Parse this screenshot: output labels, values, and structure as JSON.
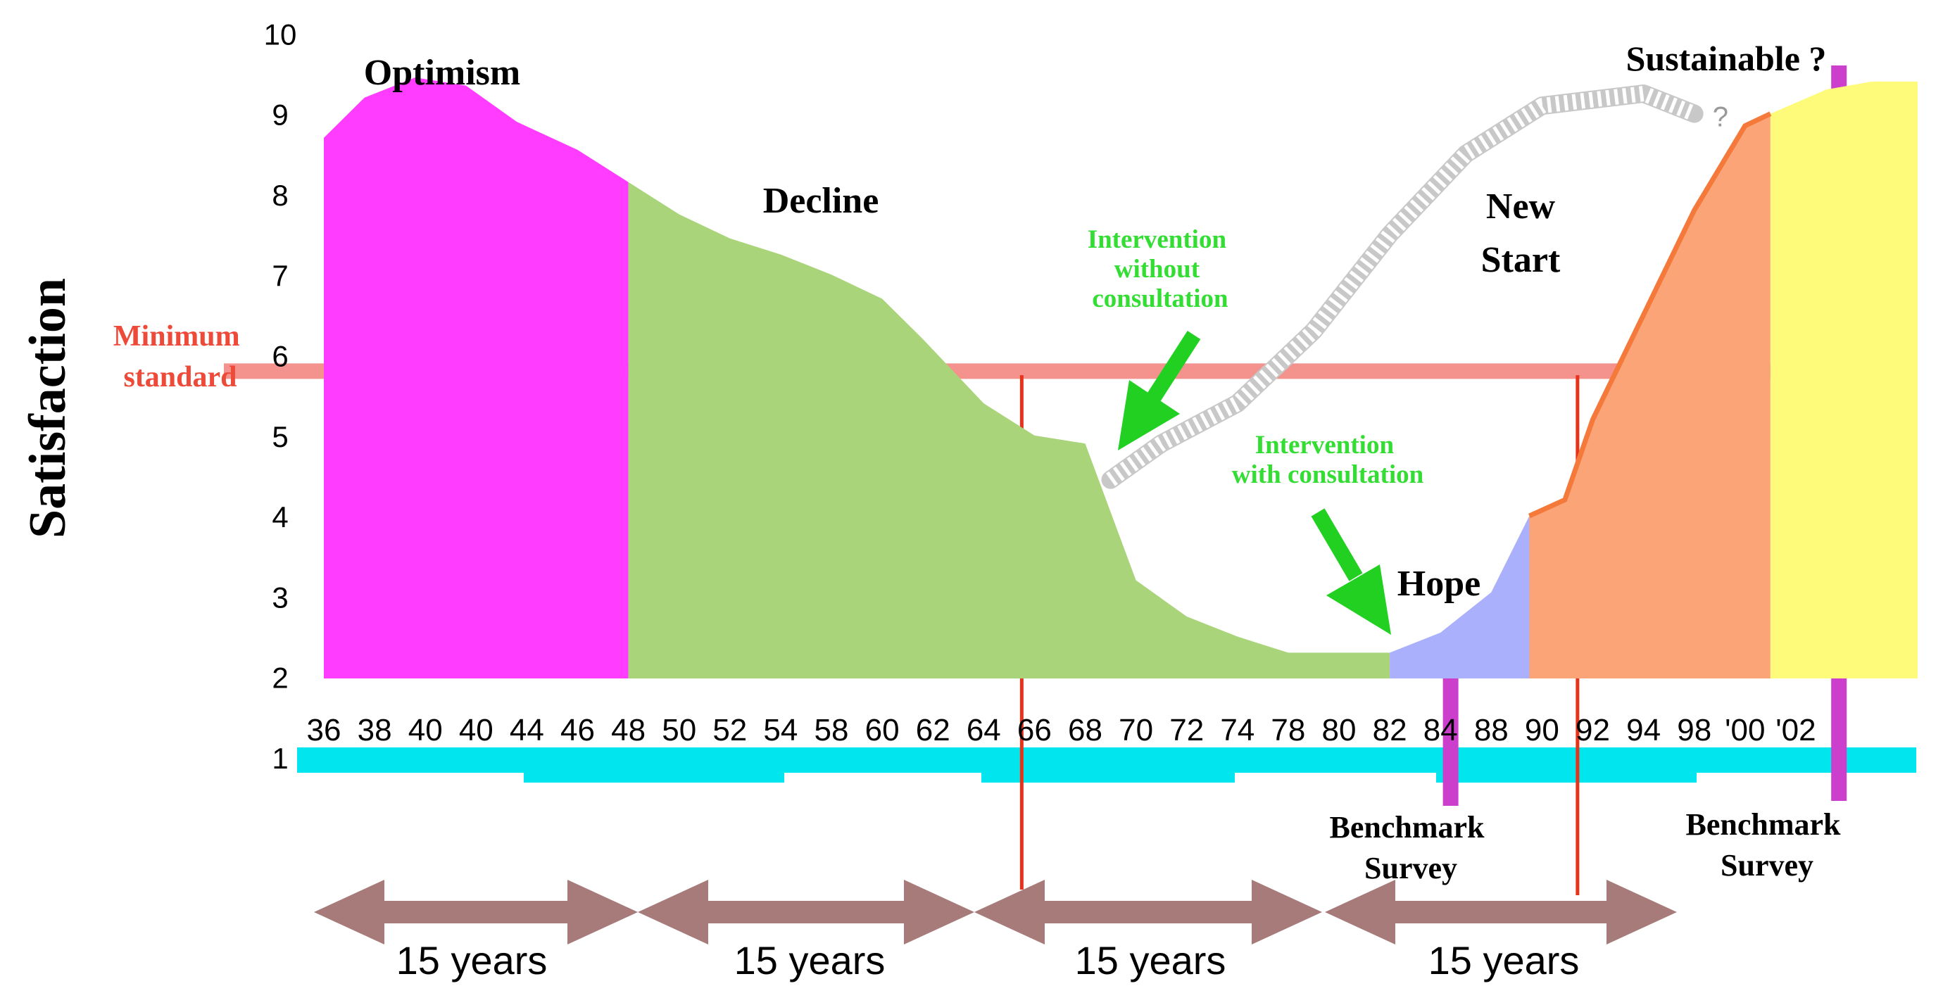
{
  "chart_data": {
    "type": "area",
    "ylabel": "Satisfaction",
    "ylim": [
      1,
      10
    ],
    "y_ticks": [
      "1",
      "2",
      "3",
      "4",
      "5",
      "6",
      "7",
      "8",
      "9",
      "10"
    ],
    "x_ticks": [
      "36",
      "38",
      "40",
      "40",
      "44",
      "46",
      "48",
      "50",
      "52",
      "54",
      "58",
      "60",
      "62",
      "64",
      "66",
      "68",
      "70",
      "72",
      "74",
      "78",
      "80",
      "82",
      "84",
      "88",
      "90",
      "92",
      "94",
      "98",
      "'00",
      "'02"
    ],
    "minimum_standard": {
      "label": "Minimum standard",
      "label_lines": [
        "Minimum",
        "standard"
      ],
      "value": 5.8,
      "color": "#f4938e"
    },
    "phases": [
      {
        "name": "Optimism",
        "color": "#ff3cff",
        "points": [
          [
            0,
            8.7
          ],
          [
            0.8,
            9.2
          ],
          [
            1.8,
            9.45
          ],
          [
            2.8,
            9.35
          ],
          [
            3.8,
            8.9
          ],
          [
            5,
            8.55
          ],
          [
            6,
            8.15
          ]
        ]
      },
      {
        "name": "Decline",
        "color": "#a9d47a",
        "points": [
          [
            6,
            8.15
          ],
          [
            7,
            7.75
          ],
          [
            8,
            7.45
          ],
          [
            9,
            7.25
          ],
          [
            10,
            7.0
          ],
          [
            11,
            6.7
          ],
          [
            11.8,
            6.2
          ],
          [
            13,
            5.4
          ],
          [
            14,
            5.0
          ],
          [
            15,
            4.9
          ],
          [
            16,
            3.2
          ],
          [
            17,
            2.75
          ],
          [
            18,
            2.5
          ],
          [
            19,
            2.3
          ],
          [
            20,
            2.3
          ],
          [
            21,
            2.3
          ]
        ]
      },
      {
        "name": "Hope",
        "color": "#aab0fb",
        "points": [
          [
            21,
            2.3
          ],
          [
            22,
            2.55
          ],
          [
            23,
            3.05
          ],
          [
            23.75,
            4.0
          ],
          [
            24.45,
            4.2
          ]
        ]
      },
      {
        "name": "New Start",
        "color": "#fba478",
        "points": [
          [
            23.75,
            4.0
          ],
          [
            24.45,
            4.2
          ],
          [
            25,
            5.2
          ],
          [
            26,
            6.5
          ],
          [
            27,
            7.8
          ],
          [
            28,
            8.85
          ],
          [
            28.5,
            9.0
          ]
        ]
      },
      {
        "name": "Sustainable ?",
        "color": "#fffb7a",
        "points": [
          [
            28.5,
            9.0
          ],
          [
            29.6,
            9.3
          ],
          [
            30.5,
            9.4
          ],
          [
            31.4,
            9.4
          ]
        ]
      }
    ],
    "boundary_line_color": "#f4793a",
    "intervention_without_consultation_path": [
      [
        15.5,
        4.45
      ],
      [
        16.5,
        4.9
      ],
      [
        18,
        5.4
      ],
      [
        19.5,
        6.3
      ],
      [
        21,
        7.5
      ],
      [
        22.5,
        8.5
      ],
      [
        24,
        9.1
      ],
      [
        26,
        9.25
      ],
      [
        27,
        9.0
      ]
    ],
    "intervention_without_consultation_end_label": "?",
    "annotations": [
      {
        "text": "Intervention without consultation",
        "lines": [
          "Intervention",
          "without",
          "consultation"
        ],
        "color": "#33dd33"
      },
      {
        "text": "Intervention with consultation",
        "lines": [
          "Intervention",
          "with consultation"
        ],
        "color": "#33dd33"
      }
    ],
    "benchmark_surveys": [
      {
        "label": "Benchmark Survey",
        "lines": [
          "Benchmark",
          "Survey"
        ],
        "x": 22.2
      },
      {
        "label": "Benchmark Survey",
        "lines": [
          "Benchmark",
          "Survey"
        ],
        "x": 29.85
      }
    ],
    "benchmark_color": "#cc3fcc",
    "red_markers_x": [
      13.75,
      24.7
    ],
    "red_marker_color": "#e8331b",
    "timeline_color": "#00e5ee",
    "periods": [
      {
        "label": "15 years"
      },
      {
        "label": "15 years"
      },
      {
        "label": "15 years"
      },
      {
        "label": "15 years"
      }
    ],
    "period_arrow_color": "#a77b79",
    "legend": "none",
    "grid": false
  }
}
